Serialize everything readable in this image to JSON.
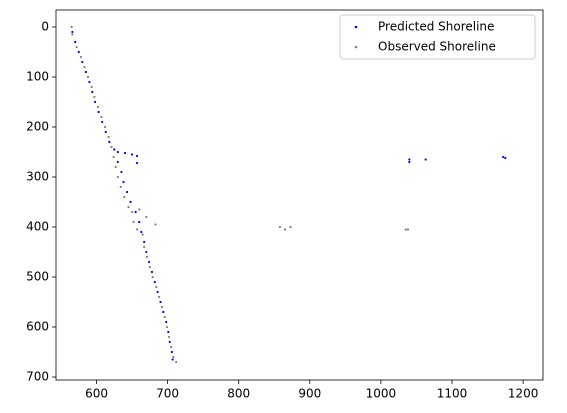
{
  "chart_data": {
    "type": "scatter",
    "xlim": [
      543,
      1228
    ],
    "ylim": [
      706,
      -34
    ],
    "xticks": [
      600,
      700,
      800,
      900,
      1000,
      1100,
      1200
    ],
    "yticks": [
      0,
      100,
      200,
      300,
      400,
      500,
      600,
      700
    ],
    "legend": "upper right",
    "series": [
      {
        "name": "Predicted Shoreline",
        "color": "#0000ff",
        "x": [
          566,
          570,
          575,
          580,
          585,
          590,
          594,
          598,
          603,
          608,
          613,
          618,
          625,
          630,
          640,
          650,
          657,
          657,
          630,
          635,
          638,
          643,
          648,
          655,
          660,
          663,
          667,
          670,
          674,
          678,
          682,
          686,
          690,
          694,
          698,
          701,
          703,
          706,
          707,
          1040,
          1040,
          1063,
          1172,
          1175
        ],
        "y": [
          10,
          30,
          50,
          70,
          90,
          110,
          130,
          150,
          170,
          190,
          210,
          230,
          245,
          250,
          252,
          255,
          258,
          272,
          270,
          290,
          310,
          330,
          350,
          370,
          390,
          410,
          430,
          450,
          470,
          490,
          510,
          530,
          550,
          570,
          590,
          610,
          630,
          650,
          665,
          265,
          270,
          265,
          260,
          262
        ]
      },
      {
        "name": "Observed Shoreline",
        "color": "#808080",
        "x": [
          565,
          566,
          572,
          578,
          583,
          588,
          593,
          597,
          602,
          607,
          612,
          617,
          621,
          624,
          627,
          630,
          634,
          639,
          645,
          650,
          660,
          670,
          683,
          652,
          657,
          665,
          667,
          671,
          675,
          679,
          684,
          688,
          692,
          696,
          699,
          702,
          705,
          708,
          712,
          858,
          865,
          873,
          1035,
          1038
        ],
        "y": [
          0,
          15,
          40,
          60,
          80,
          100,
          120,
          140,
          160,
          180,
          200,
          220,
          240,
          260,
          280,
          300,
          320,
          340,
          360,
          370,
          365,
          380,
          395,
          390,
          405,
          415,
          440,
          460,
          480,
          500,
          520,
          540,
          560,
          580,
          600,
          620,
          640,
          660,
          670,
          400,
          405,
          400,
          405,
          405
        ]
      }
    ]
  }
}
